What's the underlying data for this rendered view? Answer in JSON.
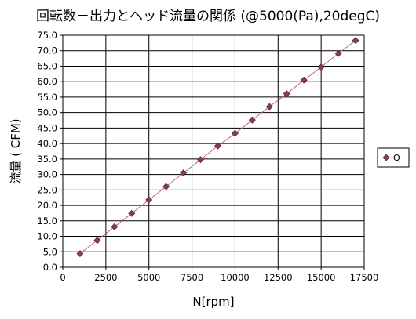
{
  "chart_data": {
    "type": "scatter",
    "title": "回転数－出力とヘッド流量の関係 (@5000(Pa),20degC)",
    "xlabel": "N[rpm]",
    "ylabel": "流量 ( CFM)",
    "xlim": [
      0,
      17500
    ],
    "ylim": [
      0,
      75
    ],
    "x_ticks": [
      "0",
      "2500",
      "5000",
      "7500",
      "10000",
      "12500",
      "15000",
      "17500"
    ],
    "y_ticks": [
      "0.0",
      "5.0",
      "10.0",
      "15.0",
      "20.0",
      "25.0",
      "30.0",
      "35.0",
      "40.0",
      "45.0",
      "50.0",
      "55.0",
      "60.0",
      "65.0",
      "70.0",
      "75.0"
    ],
    "grid": true,
    "legend_position": "right",
    "series": [
      {
        "name": "Q",
        "color": "#8b3a62",
        "line_color": "#c06080",
        "marker": "diamond",
        "x": [
          1000,
          2000,
          3000,
          4000,
          5000,
          6000,
          7000,
          8000,
          9000,
          10000,
          11000,
          12000,
          13000,
          14000,
          15000,
          16000,
          17000
        ],
        "y": [
          4.4,
          8.7,
          13.1,
          17.4,
          21.8,
          26.1,
          30.5,
          34.8,
          39.2,
          43.3,
          47.6,
          51.9,
          56.1,
          60.5,
          64.7,
          69.1,
          73.3
        ]
      }
    ]
  }
}
